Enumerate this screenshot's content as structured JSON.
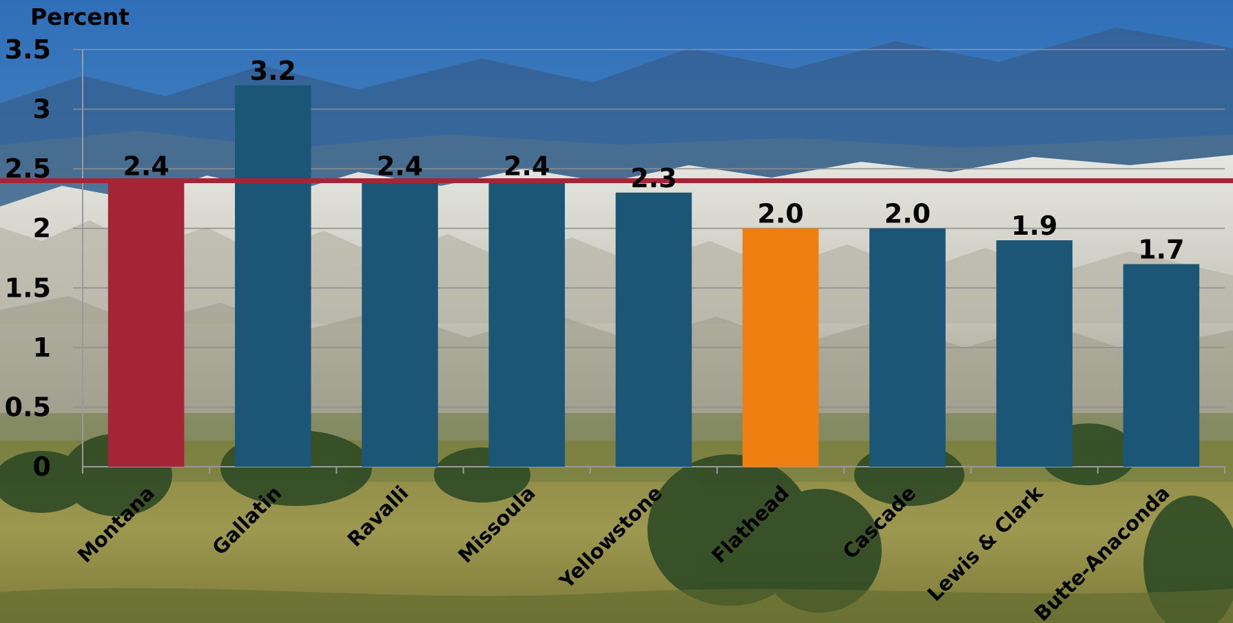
{
  "chart_data": {
    "type": "bar",
    "title": "",
    "xlabel": "",
    "ylabel": "Percent",
    "categories": [
      "Montana",
      "Gallatin",
      "Ravalli",
      "Missoula",
      "Yellowstone",
      "Flathead",
      "Cascade",
      "Lewis & Clark",
      "Butte-Anaconda"
    ],
    "values": [
      2.4,
      3.2,
      2.4,
      2.4,
      2.3,
      2.0,
      2.0,
      1.9,
      1.7
    ],
    "data_labels": [
      "2.4",
      "3.2",
      "2.4",
      "2.4",
      "2.3",
      "2.0",
      "2.0",
      "1.9",
      "1.7"
    ],
    "yticks": [
      "0",
      "0.5",
      "1",
      "1.5",
      "2",
      "2.5",
      "3",
      "3.5"
    ],
    "ytick_values": [
      0,
      0.5,
      1,
      1.5,
      2,
      2.5,
      3,
      3.5
    ],
    "ylim": [
      0,
      3.5
    ],
    "reference_line": {
      "value": 2.4,
      "color": "#a52536"
    },
    "grid": true,
    "legend": "none",
    "colors": {
      "default_bar": "#1b5677",
      "highlight_state": "#a52536",
      "highlight_county": "#ee7f10"
    },
    "bar_color_keys": [
      "highlight_state",
      "default_bar",
      "default_bar",
      "default_bar",
      "default_bar",
      "highlight_county",
      "default_bar",
      "default_bar",
      "default_bar"
    ]
  }
}
